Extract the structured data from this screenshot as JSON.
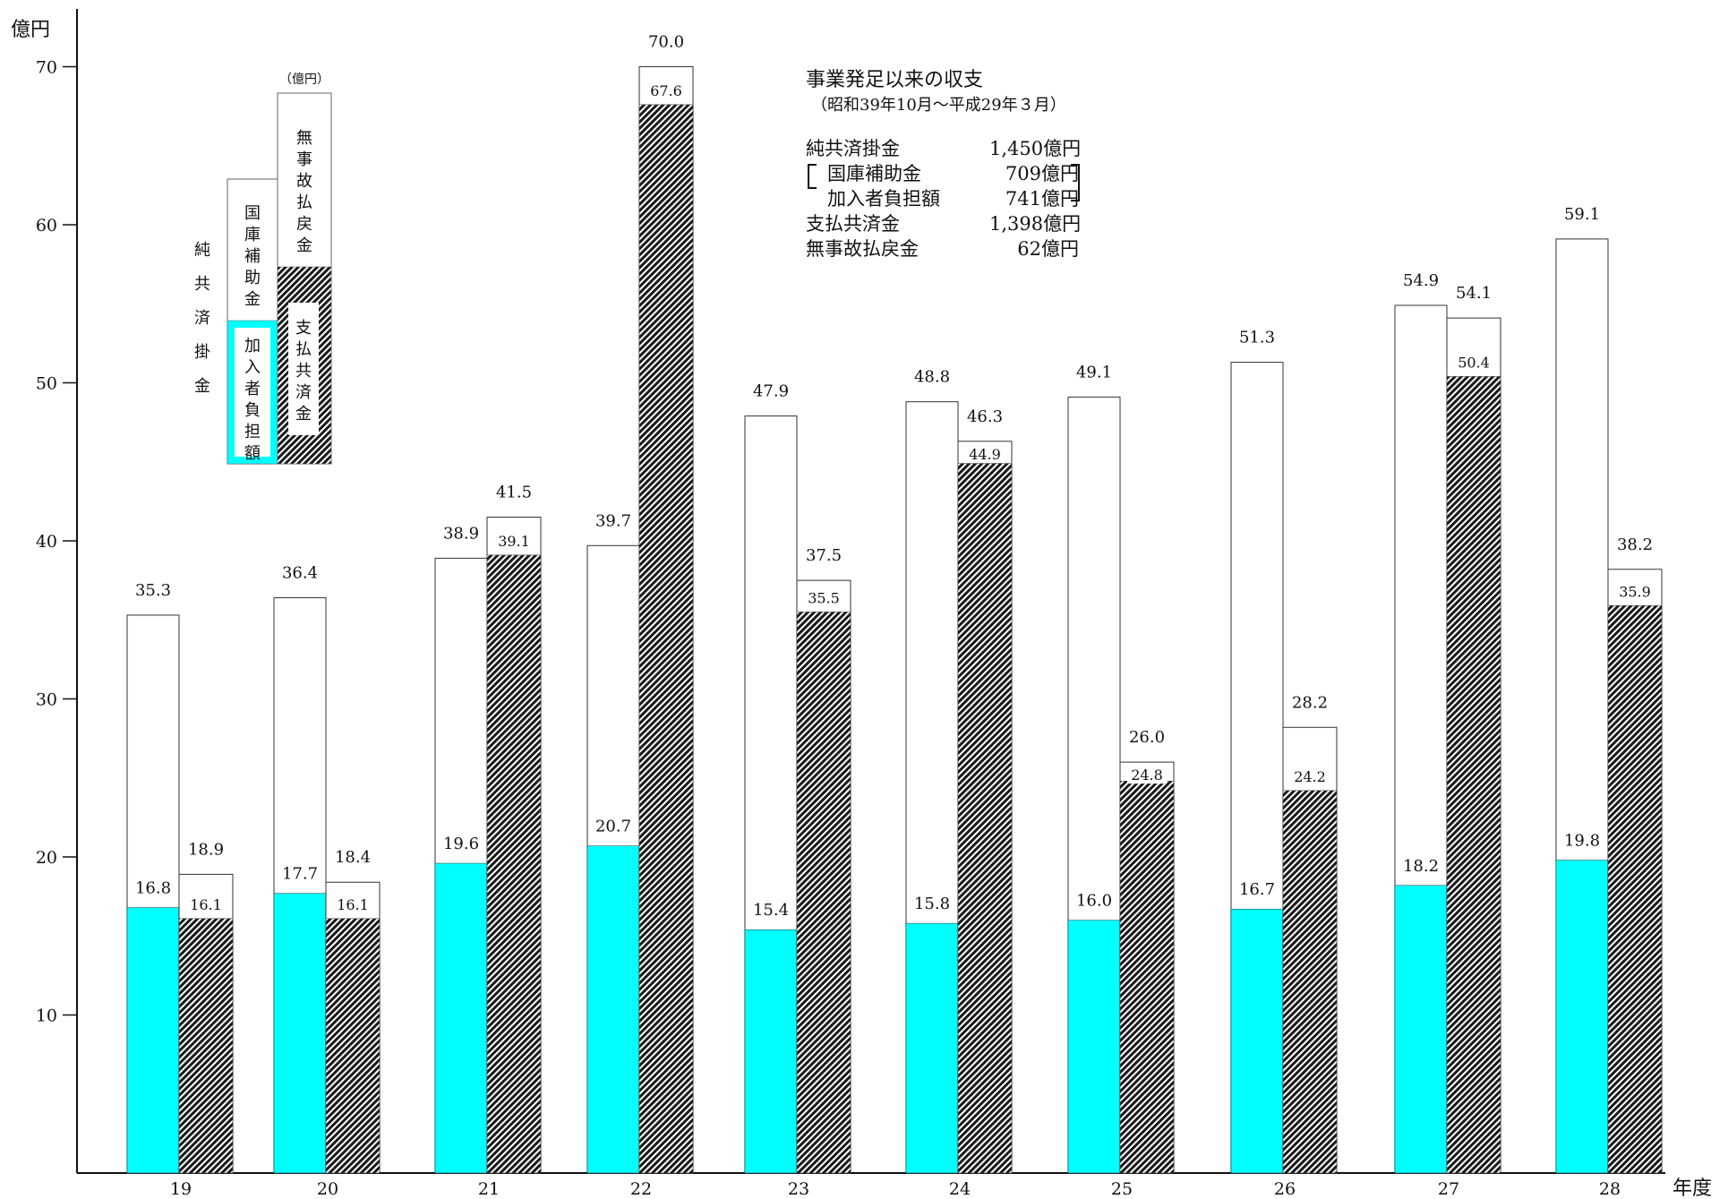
{
  "chart_data": {
    "type": "bar",
    "unit": "億円",
    "xunit": "年度",
    "categories": [
      "19",
      "20",
      "21",
      "22",
      "23",
      "24",
      "25",
      "26",
      "27",
      "28"
    ],
    "yticks": [
      10,
      20,
      30,
      40,
      50,
      60,
      70
    ],
    "ylim": [
      0,
      74
    ],
    "series": [
      {
        "name": "純共済掛金",
        "values": [
          35.3,
          36.4,
          38.9,
          39.7,
          47.9,
          48.8,
          49.1,
          51.3,
          54.9,
          59.1
        ]
      },
      {
        "name": "加入者負担額",
        "values": [
          16.8,
          17.7,
          19.6,
          20.7,
          15.4,
          15.8,
          16.0,
          16.7,
          18.2,
          19.8
        ]
      },
      {
        "name": "支払共済金",
        "values": [
          16.1,
          16.1,
          39.1,
          67.6,
          35.5,
          44.9,
          24.8,
          24.2,
          50.4,
          35.9
        ]
      },
      {
        "name": "支払総額",
        "values": [
          18.9,
          18.4,
          41.5,
          70.0,
          37.5,
          46.3,
          26.0,
          28.2,
          54.1,
          38.2
        ]
      }
    ],
    "labels": {
      "net": [
        "35.3",
        "36.4",
        "38.9",
        "39.7",
        "47.9",
        "48.8",
        "49.1",
        "51.3",
        "54.9",
        "59.1"
      ],
      "member": [
        "16.8",
        "17.7",
        "19.6",
        "20.7",
        "15.4",
        "15.8",
        "16.0",
        "16.7",
        "18.2",
        "19.8"
      ],
      "paid": [
        "16.1",
        "16.1",
        "39.1",
        "67.6",
        "35.5",
        "44.9",
        "24.8",
        "24.2",
        "50.4",
        "35.9"
      ],
      "total": [
        "18.9",
        "18.4",
        "41.5",
        "70.0",
        "37.5",
        "46.3",
        "26.0",
        "28.2",
        "54.1",
        "38.2"
      ]
    },
    "legend": {
      "net": "純共済掛金",
      "subsidy": "国庫補助金",
      "member": "加入者負担額",
      "refund": "無事故払戻金",
      "paid": "支払共済金",
      "unit_note": "（億円）"
    },
    "colors": {
      "member": "#00ffff",
      "hatch": "#1a1a1a",
      "outline": "#333333"
    }
  },
  "summary": {
    "title": "事業発足以来の収支",
    "period": "（昭和39年10月～平成29年３月）",
    "rows": [
      {
        "label": "純共済掛金",
        "amount": "1,450億円"
      },
      {
        "label": "国庫補助金",
        "amount": "709億円"
      },
      {
        "label": "加入者負担額",
        "amount": "741億円"
      },
      {
        "label": "支払共済金",
        "amount": "1,398億円"
      },
      {
        "label": "無事故払戻金",
        "amount": "62億円"
      }
    ]
  }
}
